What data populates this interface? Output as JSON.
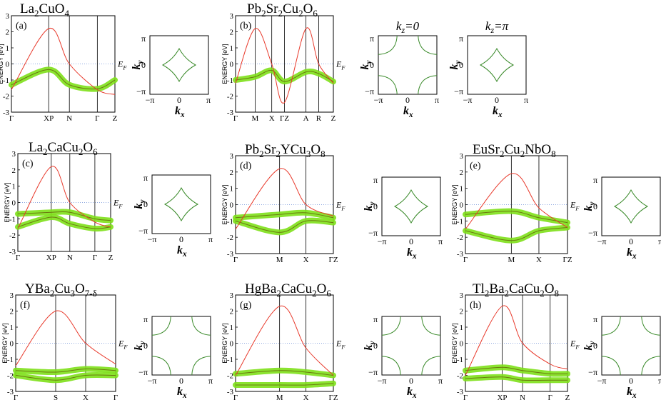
{
  "colors": {
    "band": "#e8392b",
    "fat_band": "#7ee01a",
    "fat_band_core": "#6b7a10",
    "fermi_surface": "#3a8a2a",
    "fermi_level": "#6b8dd6",
    "axis": "#000000"
  },
  "common": {
    "ylabel": "ENERGY [eV]",
    "fermi_label": "E",
    "fermi_sub": "F",
    "yticks": [
      "3",
      "2",
      "1",
      "0",
      "-1",
      "-2",
      "-3"
    ],
    "kx_label": "k",
    "kx_sub": "x",
    "ky_label": "k",
    "ky_sub": "y",
    "fs_ticks": {
      "neg_pi": "−π",
      "zero": "0",
      "pos_pi": "π"
    },
    "kz0_label": "k",
    "kz0_sub": "z",
    "kz0_value": "=0",
    "kzpi_value": "=π"
  },
  "panels": [
    {
      "id": "a",
      "label": "(a)",
      "title": [
        [
          "La",
          ""
        ],
        [
          "2",
          "sub"
        ],
        [
          "CuO",
          ""
        ],
        [
          "4",
          "sub"
        ]
      ],
      "kpoints": [
        "Γ",
        "XP",
        "N",
        "Γ",
        "Z"
      ],
      "chart_data": {
        "type": "line",
        "ylabel": "ENERGY [eV]",
        "ylim": [
          -3,
          3
        ],
        "series": [
          {
            "name": "antibonding band",
            "x": [
              0,
              0.36,
              0.56,
              0.83,
              1.0
            ],
            "y": [
              -1.6,
              2.2,
              0.0,
              -1.6,
              -1.9
            ]
          },
          {
            "name": "fat band",
            "x": [
              0,
              0.36,
              0.56,
              0.83,
              1.0
            ],
            "y": [
              -1.3,
              -0.35,
              -1.3,
              -1.55,
              -1.0
            ]
          }
        ]
      }
    },
    {
      "id": "b",
      "label": "(b)",
      "title": [
        [
          "Pb",
          ""
        ],
        [
          "2",
          "sub"
        ],
        [
          "Sr",
          ""
        ],
        [
          "2",
          "sub"
        ],
        [
          "Cu",
          ""
        ],
        [
          "2",
          "sub"
        ],
        [
          "O",
          ""
        ],
        [
          "6",
          "sub"
        ]
      ],
      "kpoints": [
        "Γ",
        "M",
        "X",
        "ΓZ",
        "A",
        "R",
        "Z"
      ],
      "chart_data": {
        "type": "line",
        "ylabel": "ENERGY [eV]",
        "ylim": [
          -3,
          3
        ],
        "series": [
          {
            "name": "band 1",
            "x": [
              0,
              0.2,
              0.37,
              0.5,
              0.72,
              0.85,
              1.0
            ],
            "y": [
              -1.2,
              2.2,
              0.0,
              -2.4,
              2.2,
              0.0,
              -1.2
            ]
          },
          {
            "name": "fat band",
            "x": [
              0,
              0.2,
              0.37,
              0.5,
              0.72,
              0.85,
              1.0
            ],
            "y": [
              -1.0,
              -0.8,
              -0.4,
              -1.1,
              -0.5,
              -0.6,
              -1.1
            ]
          }
        ]
      },
      "fs_extra": [
        {
          "kz": "0"
        },
        {
          "kz": "π"
        }
      ]
    },
    {
      "id": "c",
      "label": "(c)",
      "title": [
        [
          "La",
          ""
        ],
        [
          "2",
          "sub"
        ],
        [
          "CaCu",
          ""
        ],
        [
          "2",
          "sub"
        ],
        [
          "O",
          ""
        ],
        [
          "6",
          "sub"
        ]
      ],
      "kpoints": [
        "Γ",
        "XP",
        "N",
        "Γ",
        "Z"
      ],
      "chart_data": {
        "type": "line",
        "ylabel": "ENERGY [eV]",
        "ylim": [
          -3,
          3
        ],
        "series": [
          {
            "name": "antibonding band",
            "x": [
              0,
              0.36,
              0.56,
              0.83,
              1.0
            ],
            "y": [
              -1.6,
              2.2,
              0.0,
              -1.2,
              -1.5
            ]
          },
          {
            "name": "fat band upper",
            "x": [
              0,
              0.36,
              0.56,
              0.83,
              1.0
            ],
            "y": [
              -0.7,
              -0.6,
              -0.6,
              -1.0,
              -1.1
            ]
          },
          {
            "name": "fat band lower",
            "x": [
              0,
              0.36,
              0.56,
              0.83,
              1.0
            ],
            "y": [
              -1.5,
              -0.9,
              -1.3,
              -1.6,
              -1.5
            ]
          }
        ]
      }
    },
    {
      "id": "d",
      "label": "(d)",
      "title": [
        [
          "Pb",
          ""
        ],
        [
          "2",
          "sub"
        ],
        [
          "Sr",
          ""
        ],
        [
          "2",
          "sub"
        ],
        [
          "YCu",
          ""
        ],
        [
          "3",
          "sub"
        ],
        [
          "O",
          ""
        ],
        [
          "8",
          "sub"
        ]
      ],
      "kpoints": [
        "Γ",
        "M",
        "X",
        "ΓZ"
      ],
      "chart_data": {
        "type": "line",
        "ylabel": "ENERGY [eV]",
        "ylim": [
          -3,
          3
        ],
        "series": [
          {
            "name": "band 1",
            "x": [
              0,
              0.45,
              0.72,
              1.0
            ],
            "y": [
              -1.5,
              2.2,
              0.0,
              -0.7
            ]
          },
          {
            "name": "fat band upper",
            "x": [
              0,
              0.45,
              0.72,
              1.0
            ],
            "y": [
              -0.8,
              -0.6,
              -0.5,
              -0.8
            ]
          },
          {
            "name": "fat band lower",
            "x": [
              0,
              0.45,
              0.72,
              1.0
            ],
            "y": [
              -1.0,
              -1.7,
              -1.0,
              -1.1
            ]
          }
        ]
      }
    },
    {
      "id": "e",
      "label": "(e)",
      "title": [
        [
          "EuSr",
          ""
        ],
        [
          "2",
          "sub"
        ],
        [
          "Cu",
          ""
        ],
        [
          "2",
          "sub"
        ],
        [
          "NbO",
          ""
        ],
        [
          "8",
          "sub"
        ]
      ],
      "kpoints": [
        "Γ",
        "M",
        "X",
        "ΓZ"
      ],
      "chart_data": {
        "type": "line",
        "ylabel": "ENERGY [eV]",
        "ylim": [
          -3,
          3
        ],
        "series": [
          {
            "name": "band 1",
            "x": [
              0,
              0.45,
              0.72,
              1.0
            ],
            "y": [
              -1.5,
              1.9,
              -0.2,
              -1.4
            ]
          },
          {
            "name": "fat band upper",
            "x": [
              0,
              0.45,
              0.72,
              1.0
            ],
            "y": [
              -0.6,
              -0.4,
              -0.8,
              -1.1
            ]
          },
          {
            "name": "fat band lower",
            "x": [
              0,
              0.45,
              0.72,
              1.0
            ],
            "y": [
              -1.6,
              -2.2,
              -1.6,
              -1.4
            ]
          }
        ]
      }
    },
    {
      "id": "f",
      "label": "(f)",
      "title": [
        [
          "YBa",
          ""
        ],
        [
          "2",
          "sub"
        ],
        [
          "Cu",
          ""
        ],
        [
          "3",
          "sub"
        ],
        [
          "O",
          ""
        ],
        [
          "7-δ",
          "sub"
        ]
      ],
      "kpoints": [
        "Γ",
        "S",
        "X",
        "Γ"
      ],
      "chart_data": {
        "type": "line",
        "ylabel": "ENERGY [eV]",
        "ylim": [
          -3,
          3
        ],
        "series": [
          {
            "name": "band 1",
            "x": [
              0,
              0.4,
              0.7,
              1.0
            ],
            "y": [
              -1.4,
              2.0,
              0.0,
              -1.3
            ]
          },
          {
            "name": "fat band upper",
            "x": [
              0,
              0.4,
              0.7,
              1.0
            ],
            "y": [
              -1.7,
              -1.8,
              -1.6,
              -1.7
            ]
          },
          {
            "name": "fat band lower",
            "x": [
              0,
              0.4,
              0.7,
              1.0
            ],
            "y": [
              -2.0,
              -2.3,
              -2.0,
              -2.0
            ]
          }
        ]
      }
    },
    {
      "id": "g",
      "label": "(g)",
      "title": [
        [
          "HgBa",
          ""
        ],
        [
          "2",
          "sub"
        ],
        [
          "CaCu",
          ""
        ],
        [
          "2",
          "sub"
        ],
        [
          "O",
          ""
        ],
        [
          "6",
          "sub"
        ]
      ],
      "kpoints": [
        "Γ",
        "M",
        "X",
        "ΓZ"
      ],
      "chart_data": {
        "type": "line",
        "ylabel": "ENERGY [eV]",
        "ylim": [
          -3,
          3
        ],
        "series": [
          {
            "name": "band 1",
            "x": [
              0,
              0.45,
              0.72,
              1.0
            ],
            "y": [
              -2.0,
              2.3,
              -0.3,
              -2.0
            ]
          },
          {
            "name": "fat band upper",
            "x": [
              0,
              0.45,
              0.72,
              1.0
            ],
            "y": [
              -1.9,
              -1.7,
              -1.8,
              -2.0
            ]
          },
          {
            "name": "fat band lower",
            "x": [
              0,
              0.45,
              0.72,
              1.0
            ],
            "y": [
              -2.6,
              -2.6,
              -2.6,
              -2.5
            ]
          }
        ]
      }
    },
    {
      "id": "h",
      "label": "(h)",
      "title": [
        [
          "Tl",
          ""
        ],
        [
          "2",
          "sub"
        ],
        [
          "Ba",
          ""
        ],
        [
          "2",
          "sub"
        ],
        [
          "CaCu",
          ""
        ],
        [
          "2",
          "sub"
        ],
        [
          "O",
          ""
        ],
        [
          "8",
          "sub"
        ]
      ],
      "kpoints": [
        "Γ",
        "XP",
        "N",
        "Γ",
        "Z"
      ],
      "chart_data": {
        "type": "line",
        "ylabel": "ENERGY [eV]",
        "ylim": [
          -3,
          3
        ],
        "series": [
          {
            "name": "band 1",
            "x": [
              0,
              0.36,
              0.56,
              0.83,
              1.0
            ],
            "y": [
              -2.0,
              2.3,
              0.0,
              -1.3,
              -1.6
            ]
          },
          {
            "name": "fat band upper",
            "x": [
              0,
              0.36,
              0.56,
              0.83,
              1.0
            ],
            "y": [
              -1.7,
              -1.5,
              -1.7,
              -1.9,
              -1.9
            ]
          },
          {
            "name": "fat band lower",
            "x": [
              0,
              0.36,
              0.56,
              0.83,
              1.0
            ],
            "y": [
              -2.2,
              -2.1,
              -2.3,
              -2.3,
              -2.3
            ]
          }
        ]
      }
    }
  ]
}
